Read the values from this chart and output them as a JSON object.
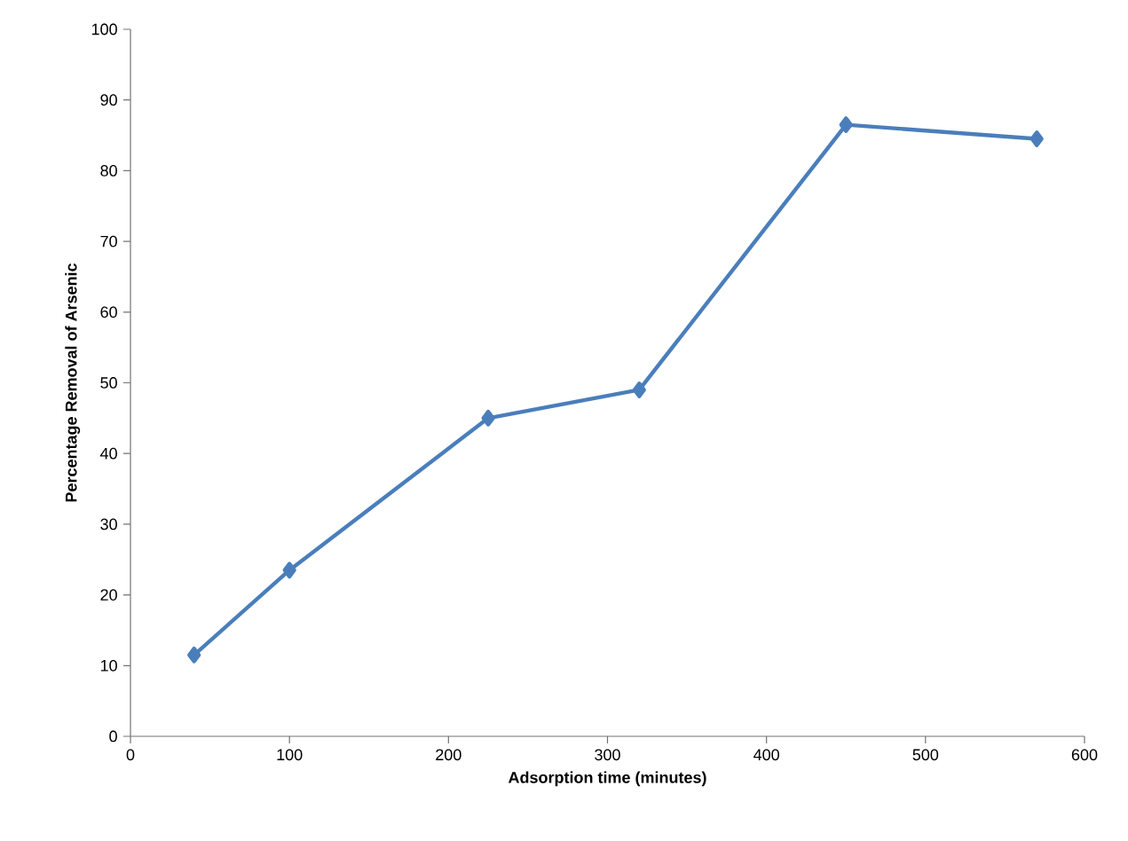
{
  "chart_data": {
    "type": "line",
    "xlabel": "Adsorption time (minutes)",
    "ylabel": "Percentage Removal of Arsenic",
    "x": [
      40,
      100,
      225,
      320,
      450,
      570
    ],
    "series": [
      {
        "color": "#4a7ebb",
        "values": [
          11.5,
          23.5,
          45.0,
          49.0,
          86.5,
          84.5
        ]
      }
    ],
    "xlim": [
      0,
      600
    ],
    "xticks": [
      0,
      100,
      200,
      300,
      400,
      500,
      600
    ],
    "ylim": [
      0,
      100
    ],
    "yticks": [
      0,
      10,
      20,
      30,
      40,
      50,
      60,
      70,
      80,
      90,
      100
    ],
    "marker": "diamond",
    "line_style": "solid"
  }
}
